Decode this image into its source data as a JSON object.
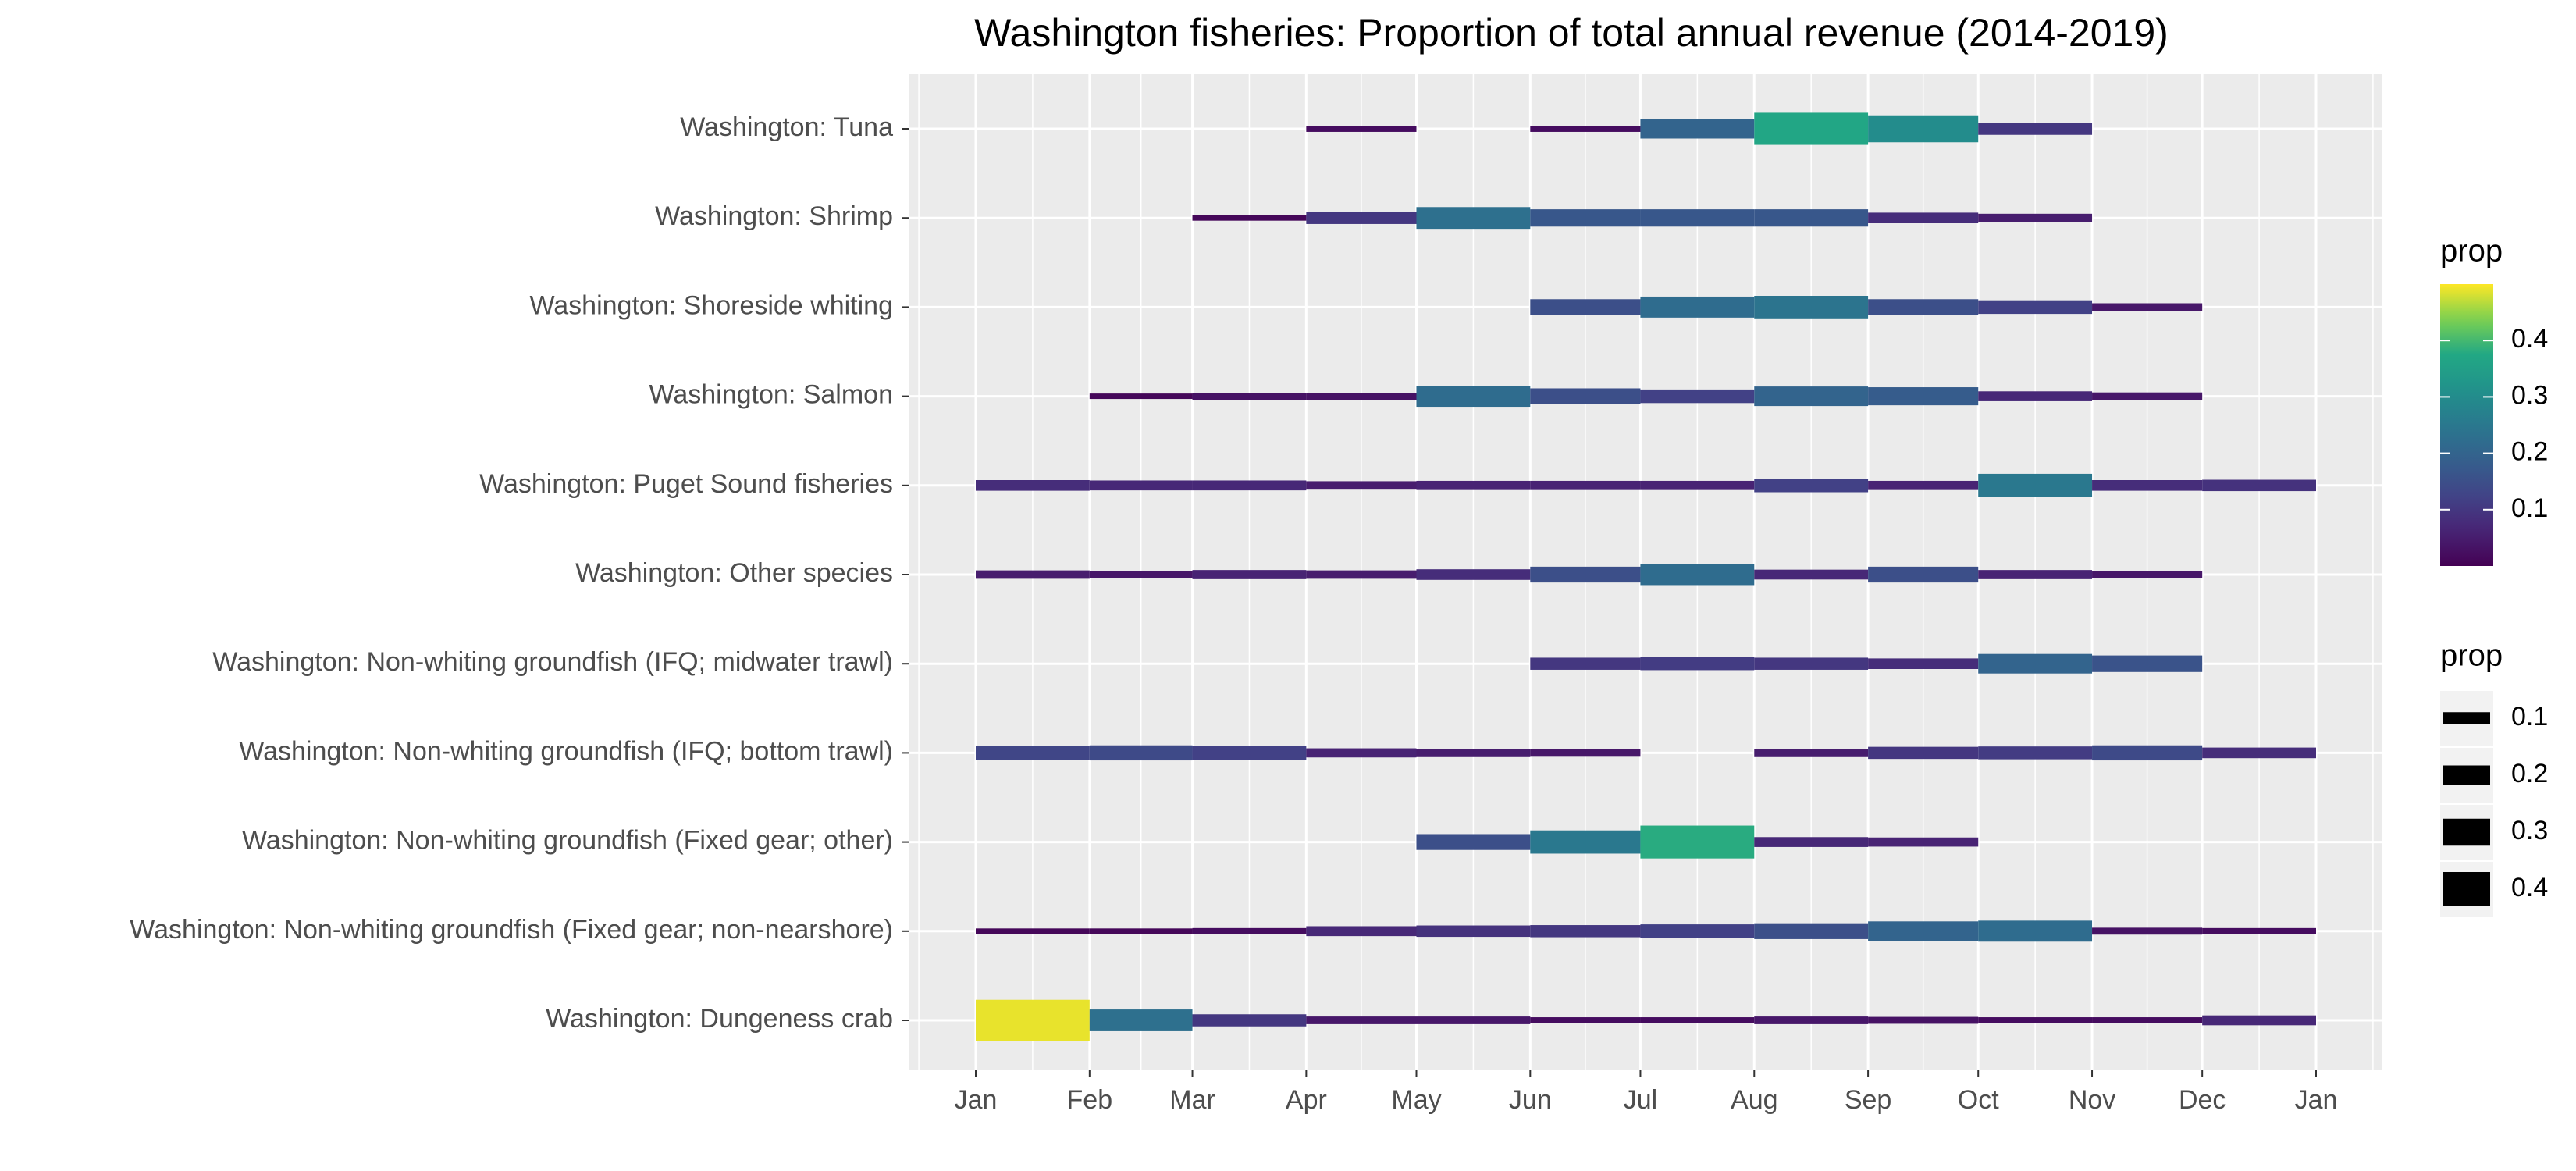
{
  "chart_data": {
    "type": "segment",
    "title": "Washington fisheries: Proportion of total annual revenue (2014-2019)",
    "x_labels": [
      "Jan",
      "Feb",
      "Mar",
      "Apr",
      "May",
      "Jun",
      "Jul",
      "Aug",
      "Sep",
      "Oct",
      "Nov",
      "Dec",
      "Jan"
    ],
    "series": [
      {
        "name": "Washington: Tuna",
        "values": [
          null,
          null,
          null,
          0.02,
          null,
          0.02,
          0.2,
          0.37,
          0.3,
          0.1,
          null,
          null
        ]
      },
      {
        "name": "Washington: Shrimp",
        "values": [
          null,
          null,
          0.01,
          0.1,
          0.23,
          0.17,
          0.17,
          0.17,
          0.08,
          0.05,
          null,
          null
        ]
      },
      {
        "name": "Washington: Shoreside whiting",
        "values": [
          null,
          null,
          null,
          null,
          null,
          0.15,
          0.22,
          0.24,
          0.15,
          0.12,
          0.04,
          null
        ]
      },
      {
        "name": "Washington: Salmon",
        "values": [
          null,
          0.01,
          0.03,
          0.03,
          0.22,
          0.15,
          0.12,
          0.2,
          0.18,
          0.07,
          0.04,
          null
        ]
      },
      {
        "name": "Washington: Puget Sound fisheries",
        "values": [
          0.08,
          0.07,
          0.07,
          0.05,
          0.06,
          0.06,
          0.06,
          0.12,
          0.06,
          0.25,
          0.08,
          0.09
        ]
      },
      {
        "name": "Washington: Other species",
        "values": [
          0.05,
          0.04,
          0.06,
          0.05,
          0.08,
          0.15,
          0.22,
          0.07,
          0.15,
          0.06,
          0.04,
          null
        ]
      },
      {
        "name": "Washington: Non-whiting groundfish (IFQ; midwater trawl)",
        "values": [
          null,
          null,
          null,
          null,
          null,
          0.1,
          0.11,
          0.1,
          0.08,
          0.2,
          0.16,
          null
        ]
      },
      {
        "name": "Washington: Non-whiting groundfish (IFQ; bottom trawl)",
        "values": [
          0.13,
          0.14,
          0.12,
          0.06,
          0.05,
          0.04,
          null,
          0.05,
          0.1,
          0.11,
          0.14,
          0.08
        ]
      },
      {
        "name": "Washington: Non-whiting groundfish (Fixed gear; other)",
        "values": [
          null,
          null,
          null,
          null,
          0.15,
          0.25,
          0.38,
          0.07,
          0.06,
          null,
          null,
          null
        ]
      },
      {
        "name": "Washington: Non-whiting groundfish (Fixed gear; non-nearshore)",
        "values": [
          0.01,
          0.01,
          0.02,
          0.07,
          0.09,
          0.1,
          0.12,
          0.15,
          0.2,
          0.22,
          0.03,
          0.02
        ]
      },
      {
        "name": "Washington: Dungeness crab",
        "values": [
          0.49,
          0.23,
          0.1,
          0.04,
          0.04,
          0.02,
          0.02,
          0.04,
          0.03,
          0.02,
          0.02,
          0.07
        ]
      }
    ],
    "color_title": "prop",
    "color_lim": [
      0,
      0.5
    ],
    "color_ticks": [
      0.1,
      0.2,
      0.3,
      0.4
    ],
    "size_title": "prop",
    "size_ticks": [
      0.1,
      0.2,
      0.3,
      0.4
    ],
    "grid": true
  }
}
